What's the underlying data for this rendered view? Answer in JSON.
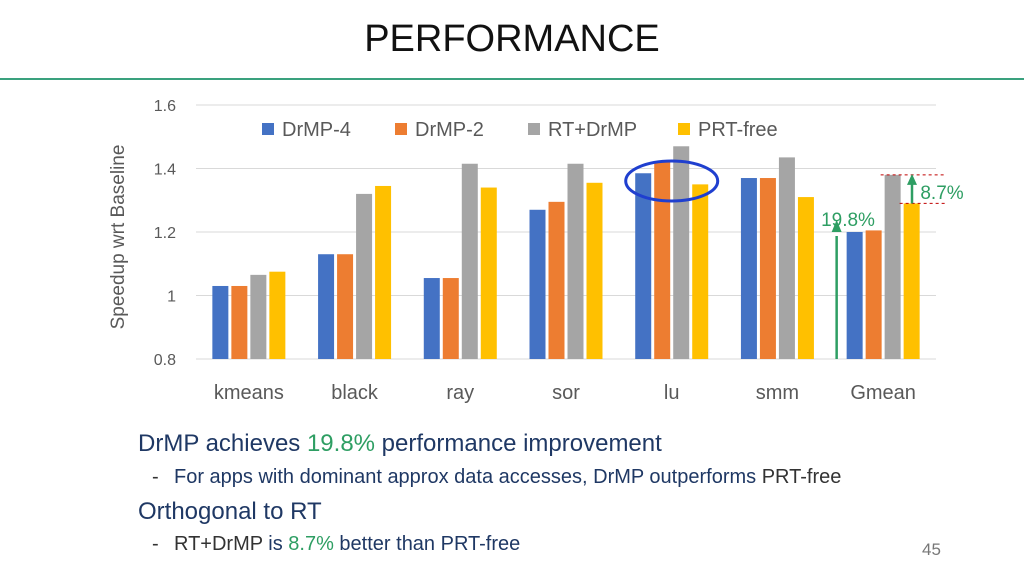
{
  "slide": {
    "title": "PERFORMANCE",
    "page_number": "45"
  },
  "chart_data": {
    "type": "bar",
    "ylabel": "Speedup wrt Baseline",
    "ylim": [
      0.8,
      1.6
    ],
    "yticks": [
      {
        "value": 0.8,
        "label": "0.8"
      },
      {
        "value": 1.0,
        "label": "1"
      },
      {
        "value": 1.2,
        "label": "1.2"
      },
      {
        "value": 1.4,
        "label": "1.4"
      },
      {
        "value": 1.6,
        "label": "1.6"
      }
    ],
    "grid": true,
    "legend_position": "top",
    "categories": [
      "kmeans",
      "black",
      "ray",
      "sor",
      "lu",
      "smm",
      "Gmean"
    ],
    "series": [
      {
        "name": "DrMP-4",
        "color": "#4472c4",
        "values": [
          1.03,
          1.13,
          1.055,
          1.27,
          1.385,
          1.37,
          1.2
        ]
      },
      {
        "name": "DrMP-2",
        "color": "#ed7d31",
        "values": [
          1.03,
          1.13,
          1.055,
          1.295,
          1.42,
          1.37,
          1.205
        ]
      },
      {
        "name": "RT+DrMP",
        "color": "#a5a5a5",
        "values": [
          1.065,
          1.32,
          1.415,
          1.415,
          1.47,
          1.435,
          1.38
        ]
      },
      {
        "name": "PRT-free",
        "color": "#ffc000",
        "values": [
          1.075,
          1.345,
          1.34,
          1.355,
          1.35,
          1.31,
          1.29
        ]
      }
    ],
    "annotations": {
      "gmean_drmp_gain": "19.8%",
      "gmean_rt_gain": "8.7%",
      "highlight_category": "lu",
      "annotation_color": "#2e9e63",
      "highlight_color": "#1f3fcf"
    }
  },
  "bullets": {
    "line1": {
      "a": "DrMP ",
      "b": "achieves ",
      "c": "19.8%",
      "d": " performance improvement"
    },
    "line2": {
      "dash": "-",
      "a": "For apps with dominant approx data accesses, ",
      "b": "DrMP outperforms ",
      "c": "PRT-free"
    },
    "line3": {
      "a": "Orthogonal to RT"
    },
    "line4": {
      "dash": "-",
      "a": "RT+DrMP ",
      "b": "is ",
      "c": "8.7%",
      "d": " better than PRT-free"
    }
  }
}
